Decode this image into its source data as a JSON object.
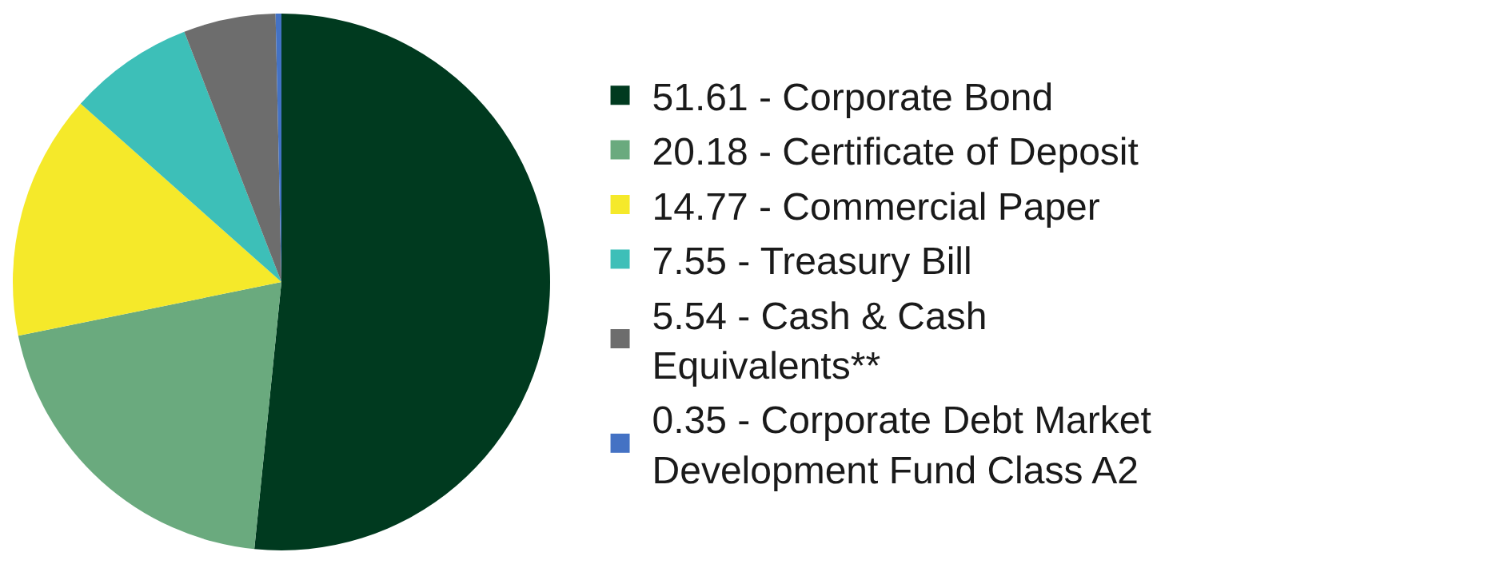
{
  "chart_data": {
    "type": "pie",
    "categories": [
      "51.61 - Corporate Bond",
      "20.18 - Certificate of Deposit",
      "14.77 - Commercial Paper",
      "7.55 - Treasury Bill",
      "5.54 - Cash & Cash Equivalents**",
      "0.35 - Corporate Debt Market Development Fund Class A2"
    ],
    "values": [
      51.61,
      20.18,
      14.77,
      7.55,
      5.54,
      0.35
    ],
    "colors": [
      "#003a1f",
      "#6aaa7e",
      "#f5e92a",
      "#3dbfb8",
      "#6d6d6d",
      "#4472c4"
    ],
    "legend": "right"
  }
}
